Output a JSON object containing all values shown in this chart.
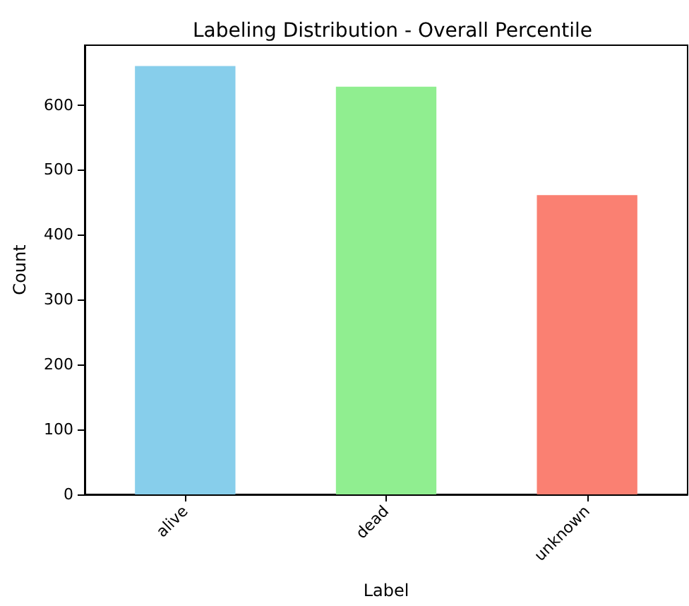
{
  "chart_data": {
    "type": "bar",
    "title": "Labeling Distribution - Overall Percentile",
    "xlabel": "Label",
    "ylabel": "Count",
    "categories": [
      "alive",
      "dead",
      "unknown"
    ],
    "values": [
      660,
      628,
      461
    ],
    "colors": [
      "#87ceeb",
      "#90ee90",
      "#fa8072"
    ],
    "ylim": [
      0,
      692
    ],
    "yticks": [
      0,
      100,
      200,
      300,
      400,
      500,
      600
    ],
    "grid": false
  }
}
